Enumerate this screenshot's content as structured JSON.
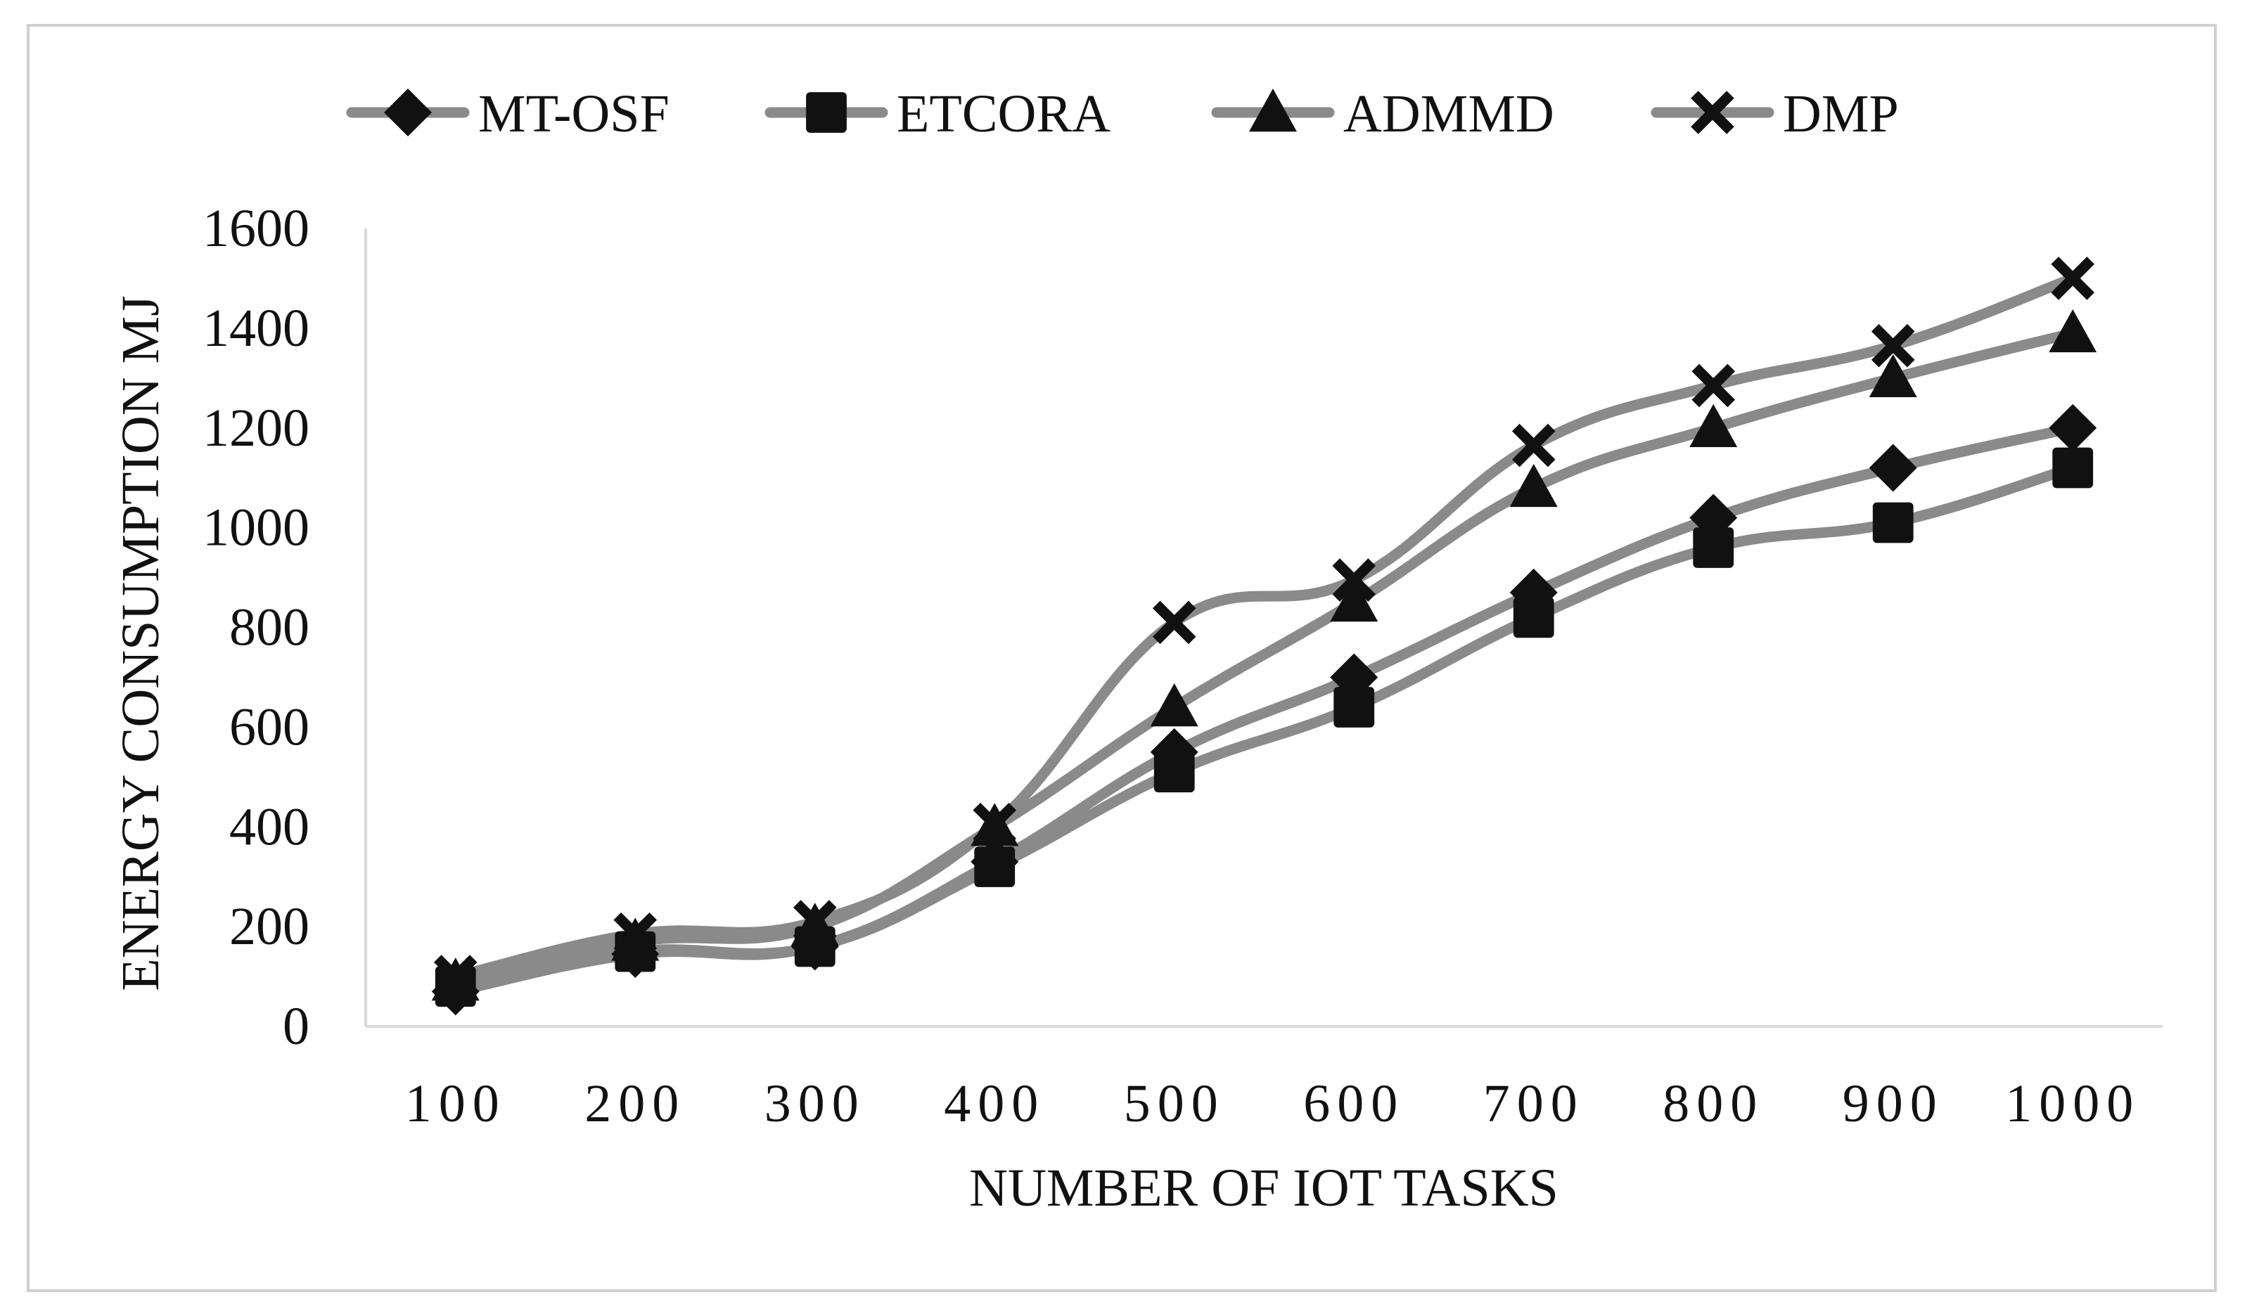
{
  "chart_data": {
    "type": "line",
    "title": "",
    "xlabel": "NUMBER OF IOT TASKS",
    "ylabel": "ENERGY CONSUMPTION MJ",
    "categories": [
      "100",
      "200",
      "300",
      "400",
      "500",
      "600",
      "700",
      "800",
      "900",
      "1000"
    ],
    "y_ticks": [
      "0",
      "200",
      "400",
      "600",
      "800",
      "1000",
      "1200",
      "1400",
      "1600"
    ],
    "ylim": [
      0,
      1600
    ],
    "grid": false,
    "smooth": true,
    "legend_position": "top",
    "line_color": "#8a8a8a",
    "marker_color": "#111111",
    "series": [
      {
        "name": "MT-OSF",
        "marker": "diamond",
        "values": [
          70,
          145,
          160,
          330,
          550,
          700,
          870,
          1020,
          1120,
          1200
        ]
      },
      {
        "name": "ETCORA",
        "marker": "square",
        "values": [
          80,
          150,
          160,
          320,
          510,
          640,
          820,
          960,
          1010,
          1120
        ]
      },
      {
        "name": "ADMMD",
        "marker": "triangle",
        "values": [
          90,
          170,
          200,
          400,
          640,
          850,
          1080,
          1200,
          1300,
          1390
        ]
      },
      {
        "name": "DMP",
        "marker": "cross",
        "values": [
          100,
          185,
          210,
          405,
          810,
          895,
          1165,
          1285,
          1365,
          1500
        ]
      }
    ]
  }
}
